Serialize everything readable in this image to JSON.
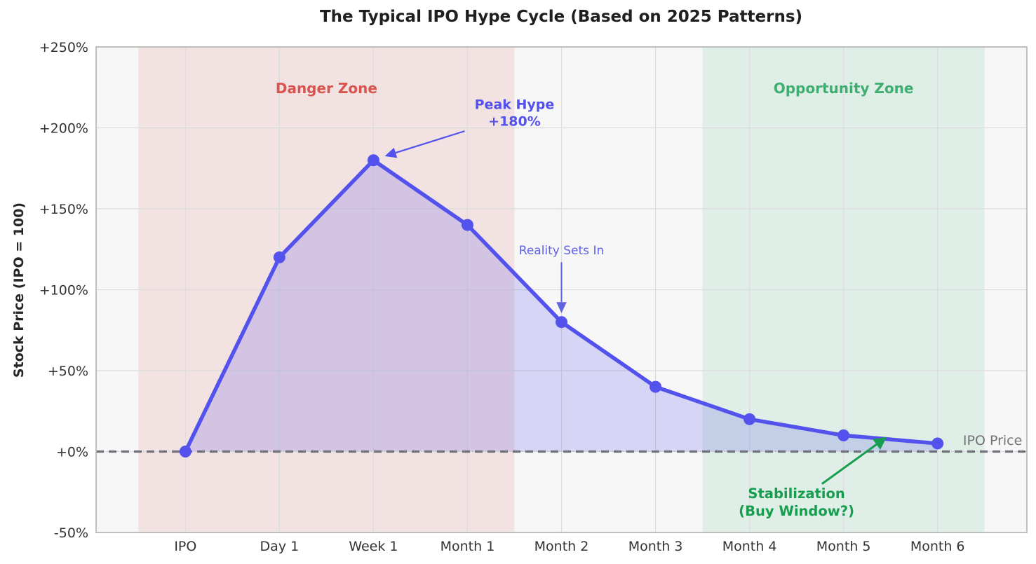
{
  "chart_data": {
    "type": "line",
    "title": "The Typical IPO Hype Cycle (Based on 2025 Patterns)",
    "xlabel": "",
    "ylabel": "Stock Price (IPO = 100)",
    "categories": [
      "IPO",
      "Day 1",
      "Week 1",
      "Month 1",
      "Month 2",
      "Month 3",
      "Month 4",
      "Month 5",
      "Month 6"
    ],
    "values": [
      0,
      120,
      180,
      140,
      80,
      40,
      20,
      10,
      5
    ],
    "xlim": [
      -0.95,
      8.95
    ],
    "ylim": [
      -50,
      250
    ],
    "yticks": [
      {
        "value": 250,
        "label": "+250%"
      },
      {
        "value": 200,
        "label": "+200%"
      },
      {
        "value": 150,
        "label": "+150%"
      },
      {
        "value": 100,
        "label": "+100%"
      },
      {
        "value": 50,
        "label": "+50%"
      },
      {
        "value": 0,
        "label": "+0%"
      },
      {
        "value": -50,
        "label": "-50%"
      }
    ],
    "grid": true,
    "legend_position": "none",
    "line_color": "#5352ed",
    "marker_color": "#5352ed",
    "fill_opacity": 0.2,
    "plot_bg_color": "#f7f7f8",
    "gridline_color": "#dcdcdc",
    "spine_color": "#b3b3b3",
    "tick_label_color": "#333333",
    "zones": [
      {
        "label": "Danger Zone",
        "x_start": -0.5,
        "x_end": 3.5,
        "fill_color": "#d9534f",
        "fill_opacity": 0.13,
        "text_color": "#d9534f",
        "label_x": 1.5,
        "label_y": 224
      },
      {
        "label": "Opportunity Zone",
        "x_start": 5.5,
        "x_end": 8.5,
        "fill_color": "#3cb371",
        "fill_opacity": 0.13,
        "text_color": "#3fae70",
        "label_x": 7.0,
        "label_y": 224
      }
    ],
    "reference_line": {
      "y": 0,
      "style": "dashed",
      "color": "#70707a",
      "label": "IPO Price",
      "label_color": "#737373",
      "label_x": 8.9,
      "label_y": 6.5
    },
    "annotations": [
      {
        "name": "peak-hype",
        "text": "Peak Hype\n+180%",
        "x": 3.5,
        "y": 209,
        "color": "#5352ed",
        "bold": true,
        "arrow": {
          "x1": 2.97,
          "y1": 198,
          "x2": 2.12,
          "y2": 182.5,
          "width": 2.2
        }
      },
      {
        "name": "reality-sets-in",
        "text": "Reality Sets In",
        "x": 4.0,
        "y": 123.5,
        "color": "#5f63e0",
        "bold": false,
        "arrow": {
          "x1": 4.0,
          "y1": 117,
          "x2": 4.0,
          "y2": 85.5,
          "width": 2.0
        }
      },
      {
        "name": "stabilization",
        "text": "Stabilization\n(Buy Window?)",
        "x": 6.5,
        "y": -32,
        "color": "#169e4e",
        "bold": true,
        "arrow": {
          "x1": 6.77,
          "y1": -20,
          "x2": 7.46,
          "y2": 9,
          "width": 3.0
        }
      }
    ]
  }
}
